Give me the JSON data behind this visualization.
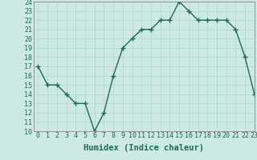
{
  "x": [
    0,
    1,
    2,
    3,
    4,
    5,
    6,
    7,
    8,
    9,
    10,
    11,
    12,
    13,
    14,
    15,
    16,
    17,
    18,
    19,
    20,
    21,
    22,
    23
  ],
  "y": [
    17,
    15,
    15,
    14,
    13,
    13,
    10,
    12,
    16,
    19,
    20,
    21,
    21,
    22,
    22,
    24,
    23,
    22,
    22,
    22,
    22,
    21,
    18,
    14
  ],
  "line_color": "#1a6b5a",
  "marker": "+",
  "bg_color": "#cce9e4",
  "grid_color": "#b0d8d0",
  "xlabel": "Humidex (Indice chaleur)",
  "xlabel_fontsize": 7.5,
  "ylim": [
    10,
    24
  ],
  "xlim": [
    -0.5,
    23
  ],
  "yticks": [
    10,
    11,
    12,
    13,
    14,
    15,
    16,
    17,
    18,
    19,
    20,
    21,
    22,
    23,
    24
  ],
  "xticks": [
    0,
    1,
    2,
    3,
    4,
    5,
    6,
    7,
    8,
    9,
    10,
    11,
    12,
    13,
    14,
    15,
    16,
    17,
    18,
    19,
    20,
    21,
    22,
    23
  ],
  "xtick_labels": [
    "0",
    "1",
    "2",
    "3",
    "4",
    "5",
    "6",
    "7",
    "8",
    "9",
    "10",
    "11",
    "12",
    "13",
    "14",
    "15",
    "16",
    "17",
    "18",
    "19",
    "20",
    "21",
    "22",
    "23"
  ],
  "tick_fontsize": 6,
  "line_width": 1.0,
  "marker_size": 4
}
